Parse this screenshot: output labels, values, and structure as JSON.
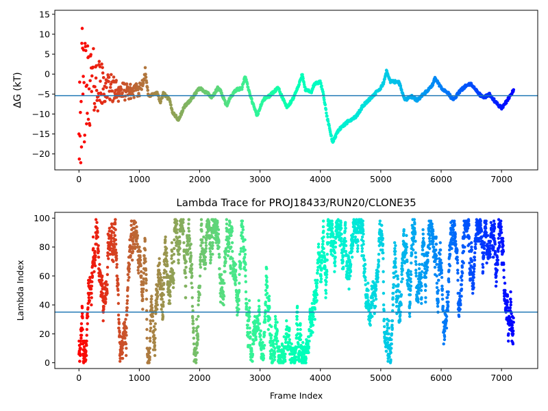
{
  "chart_data": [
    {
      "type": "scatter",
      "title": "",
      "xlabel": "",
      "ylabel": "ΔG (kT)",
      "xlim": [
        -400,
        7600
      ],
      "ylim": [
        -24,
        16
      ],
      "xticks": [
        0,
        1000,
        2000,
        3000,
        4000,
        5000,
        6000,
        7000
      ],
      "yticks": [
        -20,
        -15,
        -10,
        -5,
        0,
        5,
        10,
        15
      ],
      "grid": false,
      "legend": "none",
      "colormap": "rainbow (red at frame 0 to violet at frame 7200)",
      "hline": -5.4,
      "hline_color": "#1f77b4",
      "series": [
        {
          "mode": "noisy early scatter then converging trace",
          "trace_points": [
            [
              0,
              -5
            ],
            [
              100,
              -5
            ],
            [
              200,
              -2
            ],
            [
              400,
              -3
            ],
            [
              600,
              -4
            ],
            [
              800,
              -4.5
            ],
            [
              1000,
              -4
            ],
            [
              1100,
              0.3
            ],
            [
              1150,
              -5.5
            ],
            [
              1200,
              -5.2
            ],
            [
              1300,
              -4.8
            ],
            [
              1350,
              -7
            ],
            [
              1400,
              -4.8
            ],
            [
              1500,
              -6.5
            ],
            [
              1550,
              -9.5
            ],
            [
              1650,
              -11.5
            ],
            [
              1750,
              -8
            ],
            [
              1850,
              -6.5
            ],
            [
              1950,
              -4.5
            ],
            [
              2000,
              -3.5
            ],
            [
              2150,
              -5
            ],
            [
              2200,
              -6
            ],
            [
              2300,
              -3.5
            ],
            [
              2350,
              -4.3
            ],
            [
              2450,
              -8
            ],
            [
              2500,
              -6
            ],
            [
              2600,
              -4
            ],
            [
              2700,
              -3.5
            ],
            [
              2750,
              -0.5
            ],
            [
              2850,
              -6
            ],
            [
              2950,
              -10.5
            ],
            [
              3050,
              -6.5
            ],
            [
              3150,
              -5.5
            ],
            [
              3300,
              -3.5
            ],
            [
              3450,
              -8.5
            ],
            [
              3550,
              -6
            ],
            [
              3650,
              -2.5
            ],
            [
              3700,
              0.2
            ],
            [
              3750,
              -4
            ],
            [
              3850,
              -4.5
            ],
            [
              3900,
              -2.5
            ],
            [
              4000,
              -2
            ],
            [
              4050,
              -5
            ],
            [
              4100,
              -10
            ],
            [
              4200,
              -17
            ],
            [
              4300,
              -14
            ],
            [
              4450,
              -12
            ],
            [
              4600,
              -10.5
            ],
            [
              4700,
              -8
            ],
            [
              4800,
              -6.5
            ],
            [
              4900,
              -5
            ],
            [
              5000,
              -3.5
            ],
            [
              5050,
              -2
            ],
            [
              5100,
              1
            ],
            [
              5150,
              -1.8
            ],
            [
              5300,
              -2
            ],
            [
              5400,
              -6.5
            ],
            [
              5500,
              -5.5
            ],
            [
              5600,
              -6.5
            ],
            [
              5750,
              -4.5
            ],
            [
              5850,
              -3
            ],
            [
              5900,
              -1
            ],
            [
              6000,
              -3.5
            ],
            [
              6100,
              -4.5
            ],
            [
              6200,
              -6.5
            ],
            [
              6300,
              -4.5
            ],
            [
              6400,
              -3
            ],
            [
              6500,
              -2.5
            ],
            [
              6600,
              -4.5
            ],
            [
              6700,
              -6
            ],
            [
              6800,
              -5
            ],
            [
              6900,
              -7
            ],
            [
              7000,
              -8.5
            ],
            [
              7100,
              -6.5
            ],
            [
              7200,
              -4
            ]
          ]
        }
      ]
    },
    {
      "type": "scatter",
      "title": "Lambda Trace for PROJ18433/RUN20/CLONE35",
      "xlabel": "Frame Index",
      "ylabel": "Lambda Index",
      "xlim": [
        -400,
        7600
      ],
      "ylim": [
        -4,
        104
      ],
      "xticks": [
        0,
        1000,
        2000,
        3000,
        4000,
        5000,
        6000,
        7000
      ],
      "yticks": [
        0,
        20,
        40,
        60,
        80,
        100
      ],
      "grid": false,
      "legend": "none",
      "colormap": "rainbow (red at frame 0 to violet at frame 7200)",
      "hline": 35,
      "hline_color": "#1f77b4",
      "series": [
        {
          "mode": "dense random-walk scatter over lambda indices 0–99 for frames 0–7200",
          "x_range": [
            0,
            7200
          ],
          "y_range": [
            0,
            99
          ]
        }
      ]
    }
  ]
}
